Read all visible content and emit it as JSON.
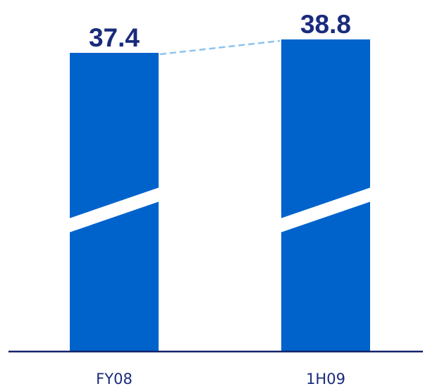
{
  "chart_data": {
    "type": "bar",
    "categories": [
      "FY08",
      "1H09"
    ],
    "values": [
      37.4,
      38.8
    ],
    "axis_break": true,
    "connector_line": "dashed",
    "grid": false,
    "legend": "none"
  },
  "colors": {
    "bar": "#0063CC",
    "value_label": "#1A2B7C",
    "axis": "#14236B",
    "category_label": "#1A2B7C",
    "connector": "#8CC3EE",
    "background": "#FFFFFF"
  }
}
